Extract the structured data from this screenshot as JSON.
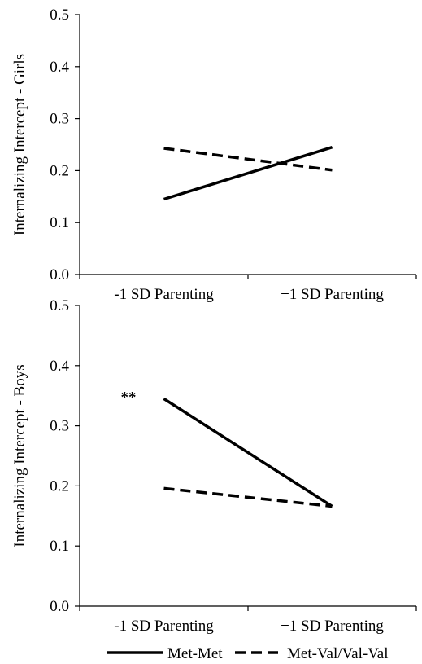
{
  "chart_data": [
    {
      "type": "line",
      "categories": [
        "-1 SD Parenting",
        "+1 SD Parenting"
      ],
      "ylabel": "Internalizing Intercept - Girls",
      "ylim": [
        0.0,
        0.5
      ],
      "yticks": [
        "0.0",
        "0.1",
        "0.2",
        "0.3",
        "0.4",
        "0.5"
      ],
      "grid": false,
      "series": [
        {
          "name": "Met-Met",
          "values": [
            0.145,
            0.245
          ],
          "style": "solid",
          "color": "#000000"
        },
        {
          "name": "Met-Val/Val-Val",
          "values": [
            0.243,
            0.201
          ],
          "style": "dashed",
          "color": "#000000"
        }
      ],
      "annotations": []
    },
    {
      "type": "line",
      "categories": [
        "-1 SD Parenting",
        "+1 SD Parenting"
      ],
      "ylabel": "Internalizing Intercept - Boys",
      "ylim": [
        0.0,
        0.5
      ],
      "yticks": [
        "0.0",
        "0.1",
        "0.2",
        "0.3",
        "0.4",
        "0.5"
      ],
      "grid": false,
      "series": [
        {
          "name": "Met-Met",
          "values": [
            0.345,
            0.166
          ],
          "style": "solid",
          "color": "#000000"
        },
        {
          "name": "Met-Val/Val-Val",
          "values": [
            0.196,
            0.166
          ],
          "style": "dashed",
          "color": "#000000"
        }
      ],
      "annotations": [
        {
          "text": "**",
          "category_index": 0,
          "y": 0.345
        }
      ]
    }
  ],
  "legend": {
    "placement": "bottom",
    "items": [
      {
        "label": "Met-Met",
        "style": "solid"
      },
      {
        "label": "Met-Val/Val-Val",
        "style": "dashed"
      }
    ]
  }
}
